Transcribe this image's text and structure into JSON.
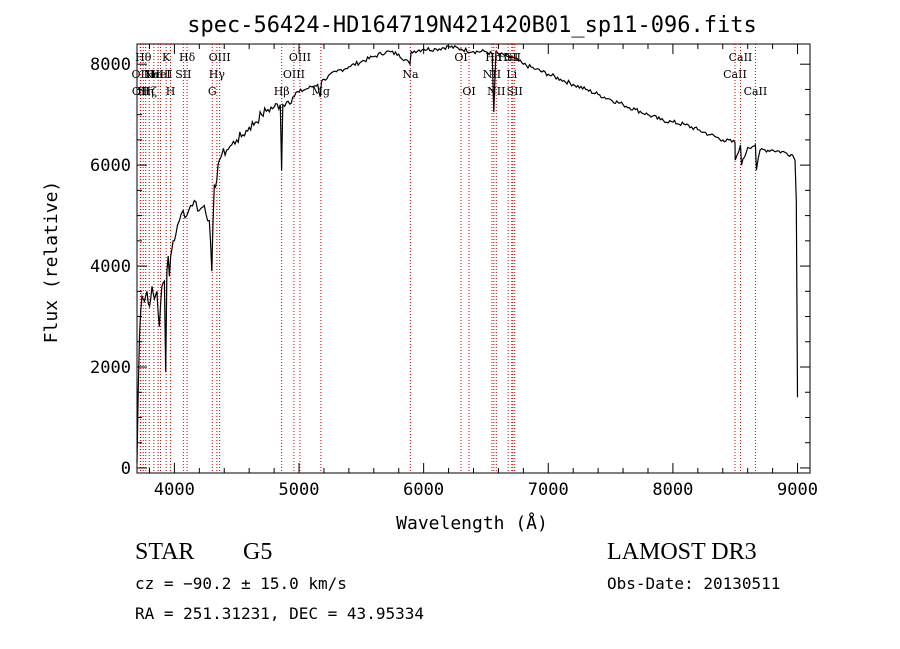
{
  "chart_data": {
    "type": "line",
    "title": "spec-56424-HD164719N421420B01_sp11-096.fits",
    "xlabel": "Wavelength (Å)",
    "ylabel": "Flux (relative)",
    "xlim": [
      3700,
      9100
    ],
    "ylim": [
      -100,
      8400
    ],
    "xticks": [
      4000,
      5000,
      6000,
      7000,
      8000,
      9000
    ],
    "yticks": [
      0,
      2000,
      4000,
      6000,
      8000
    ],
    "line_color": "#000000",
    "marker_color": "#cc0000",
    "series": [
      {
        "name": "flux",
        "x": [
          3700,
          3710,
          3720,
          3730,
          3740,
          3760,
          3780,
          3800,
          3820,
          3840,
          3860,
          3880,
          3900,
          3920,
          3930,
          3940,
          3950,
          3960,
          3970,
          3990,
          4010,
          4040,
          4070,
          4100,
          4130,
          4160,
          4200,
          4240,
          4280,
          4300,
          4320,
          4340,
          4350,
          4360,
          4380,
          4420,
          4460,
          4500,
          4550,
          4600,
          4650,
          4700,
          4750,
          4800,
          4850,
          4860,
          4870,
          4900,
          4950,
          5000,
          5050,
          5100,
          5150,
          5170,
          5180,
          5200,
          5300,
          5400,
          5500,
          5600,
          5700,
          5800,
          5890,
          5900,
          6000,
          6100,
          6200,
          6300,
          6400,
          6500,
          6550,
          6563,
          6580,
          6600,
          6700,
          6800,
          6900,
          7000,
          7100,
          7200,
          7300,
          7400,
          7500,
          7600,
          7700,
          7800,
          7900,
          8000,
          8100,
          8200,
          8300,
          8400,
          8498,
          8500,
          8542,
          8550,
          8600,
          8662,
          8670,
          8700,
          8800,
          8900,
          8960,
          8980,
          8990,
          9000
        ],
        "y": [
          100,
          1500,
          2600,
          3100,
          3400,
          3300,
          3500,
          3200,
          3600,
          3350,
          3500,
          2800,
          3600,
          3700,
          1900,
          3900,
          4200,
          3800,
          4200,
          4500,
          4600,
          4900,
          5100,
          5000,
          5200,
          5300,
          5100,
          5200,
          4900,
          3900,
          5600,
          5700,
          6000,
          6100,
          6200,
          6300,
          6400,
          6500,
          6600,
          6750,
          6850,
          7000,
          7100,
          7150,
          7200,
          5900,
          7200,
          7250,
          7350,
          7450,
          7500,
          7550,
          7600,
          7350,
          7650,
          7700,
          7850,
          7950,
          8050,
          8150,
          8250,
          8200,
          8000,
          8250,
          8300,
          8300,
          8350,
          8300,
          8250,
          8250,
          8200,
          7050,
          8250,
          8200,
          8150,
          8000,
          7900,
          7800,
          7700,
          7600,
          7500,
          7400,
          7300,
          7200,
          7100,
          7000,
          6900,
          6850,
          6800,
          6700,
          6600,
          6500,
          6450,
          6100,
          6400,
          6000,
          6350,
          6400,
          5900,
          6300,
          6300,
          6250,
          6200,
          6100,
          5300,
          1400
        ]
      }
    ],
    "line_markers": [
      {
        "w": 3727,
        "labels": [
          "OII"
        ],
        "row": 1
      },
      {
        "w": 3730,
        "labels": [
          "OII"
        ],
        "row": 2
      },
      {
        "w": 3750,
        "labels": [
          "Hθ"
        ],
        "row": 0
      },
      {
        "w": 3770,
        "labels": [
          "Hη"
        ],
        "row": 2
      },
      {
        "w": 3798,
        "labels": [
          "Hζ"
        ],
        "row": 2
      },
      {
        "w": 3835,
        "labels": [
          "Hε"
        ],
        "row": 1
      },
      {
        "w": 3869,
        "labels": [
          "NeIII"
        ],
        "row": 1
      },
      {
        "w": 3889,
        "labels": [
          "HeI"
        ],
        "row": 1
      },
      {
        "w": 3934,
        "labels": [
          "K"
        ],
        "row": 0
      },
      {
        "w": 3969,
        "labels": [
          "H"
        ],
        "row": 2
      },
      {
        "w": 4072,
        "labels": [
          "SII"
        ],
        "row": 1
      },
      {
        "w": 4102,
        "labels": [
          "Hδ"
        ],
        "row": 0
      },
      {
        "w": 4304,
        "labels": [
          "G"
        ],
        "row": 2
      },
      {
        "w": 4341,
        "labels": [
          "Hγ"
        ],
        "row": 1
      },
      {
        "w": 4363,
        "labels": [
          "OIII"
        ],
        "row": 0
      },
      {
        "w": 4861,
        "labels": [
          "Hβ"
        ],
        "row": 2
      },
      {
        "w": 4959,
        "labels": [
          "OIII"
        ],
        "row": 1
      },
      {
        "w": 5007,
        "labels": [
          "OIII"
        ],
        "row": 0
      },
      {
        "w": 5175,
        "labels": [
          "Mg"
        ],
        "row": 2
      },
      {
        "w": 5894,
        "labels": [
          "Na"
        ],
        "row": 1
      },
      {
        "w": 6300,
        "labels": [
          "OI"
        ],
        "row": 0
      },
      {
        "w": 6364,
        "labels": [
          "OI"
        ],
        "row": 2
      },
      {
        "w": 6548,
        "labels": [
          "NII"
        ],
        "row": 1
      },
      {
        "w": 6563,
        "labels": [
          "Hα"
        ],
        "row": 0
      },
      {
        "w": 6583,
        "labels": [
          "NII"
        ],
        "row": 2
      },
      {
        "w": 6678,
        "labels": [
          "HeI"
        ],
        "row": 0
      },
      {
        "w": 6707,
        "labels": [
          "Li"
        ],
        "row": 1
      },
      {
        "w": 6716,
        "labels": [
          "SII"
        ],
        "row": 0
      },
      {
        "w": 6731,
        "labels": [
          "SII"
        ],
        "row": 2
      },
      {
        "w": 8498,
        "labels": [
          "CaII"
        ],
        "row": 1
      },
      {
        "w": 8542,
        "labels": [
          "CaII"
        ],
        "row": 0
      },
      {
        "w": 8662,
        "labels": [
          "CaII"
        ],
        "row": 2
      }
    ]
  },
  "info": {
    "class": "STAR",
    "subclass": "G5",
    "survey": "LAMOST DR3",
    "redshift": "cz = −90.2 ± 15.0 km/s",
    "obs_date": "Obs-Date: 20130511",
    "coords": "RA = 251.31231, DEC =  43.95334"
  }
}
